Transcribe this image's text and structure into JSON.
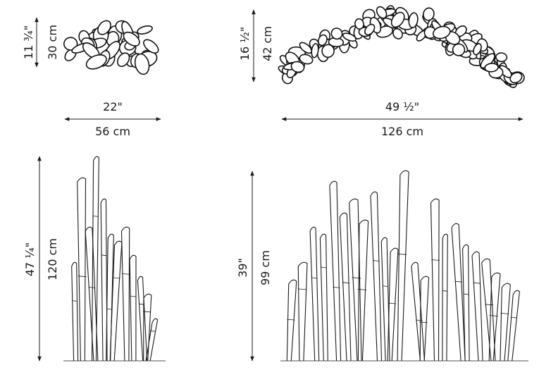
{
  "top_left": {
    "height_in": "11 ¾\"",
    "height_cm": "30 cm",
    "width_in": "22\"",
    "width_cm": "56 cm"
  },
  "top_right": {
    "height_in": "16 ½\"",
    "height_cm": "42 cm",
    "width_in": "49 ½\"",
    "width_cm": "126 cm"
  },
  "bottom_left": {
    "height_in": "47 ¼\"",
    "height_cm": "120 cm"
  },
  "bottom_right": {
    "height_in": "39\"",
    "height_cm": "99 cm"
  }
}
